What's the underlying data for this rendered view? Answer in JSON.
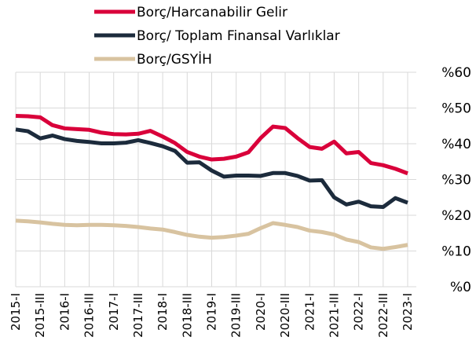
{
  "chart_data": {
    "type": "line",
    "categories": [
      "2015-I",
      null,
      "2015-III",
      null,
      "2016-I",
      null,
      "2016-III",
      null,
      "2017-I",
      null,
      "2017-III",
      null,
      "2018-I",
      null,
      "2018-III",
      null,
      "2019-I",
      null,
      "2019-III",
      null,
      "2020-I",
      null,
      "2020-III",
      null,
      "2021-I",
      null,
      "2021-III",
      null,
      "2022-I",
      null,
      "2022-III",
      null,
      "2023-I"
    ],
    "series": [
      {
        "name": "Borç/Harcanabilir Gelir",
        "color": "#d9003a",
        "values": [
          47.8,
          47.7,
          47.4,
          45.2,
          44.3,
          44.1,
          43.9,
          43.1,
          42.7,
          42.6,
          42.8,
          43.6,
          42,
          40.2,
          37.7,
          36.4,
          35.6,
          35.8,
          36.4,
          37.6,
          41.6,
          44.8,
          44.4,
          41.6,
          39.1,
          38.6,
          40.6,
          37.3,
          37.7,
          34.6,
          34,
          33,
          31.7
        ]
      },
      {
        "name": "Borç/ Toplam Finansal Varlıklar",
        "color": "#1c2b3c",
        "values": [
          44,
          43.5,
          41.5,
          42.3,
          41.3,
          40.8,
          40.5,
          40.1,
          40.1,
          40.3,
          41,
          40.2,
          39.3,
          38,
          34.7,
          34.8,
          32.5,
          30.8,
          31.1,
          31.1,
          31,
          31.8,
          31.8,
          31,
          29.7,
          29.8,
          25,
          23,
          23.8,
          22.5,
          22.3,
          24.8,
          23.5
        ]
      },
      {
        "name": "Borç/GSYİH",
        "color": "#d8c3a0",
        "values": [
          18.5,
          18.3,
          18,
          17.6,
          17.3,
          17.2,
          17.3,
          17.3,
          17.2,
          17,
          16.7,
          16.3,
          16,
          15.3,
          14.5,
          14,
          13.7,
          13.9,
          14.3,
          14.8,
          16.4,
          17.8,
          17.3,
          16.7,
          15.7,
          15.3,
          14.6,
          13.2,
          12.5,
          11,
          10.6,
          11.1,
          11.7
        ]
      }
    ],
    "ylim": [
      0,
      60
    ],
    "yticks": [
      {
        "value": 0,
        "label": "%0"
      },
      {
        "value": 10,
        "label": "%10"
      },
      {
        "value": 20,
        "label": "%20"
      },
      {
        "value": 30,
        "label": "%30"
      },
      {
        "value": 40,
        "label": "%40"
      },
      {
        "value": 50,
        "label": "%50"
      },
      {
        "value": 60,
        "label": "%60"
      }
    ],
    "grid": true,
    "legend": "top"
  }
}
